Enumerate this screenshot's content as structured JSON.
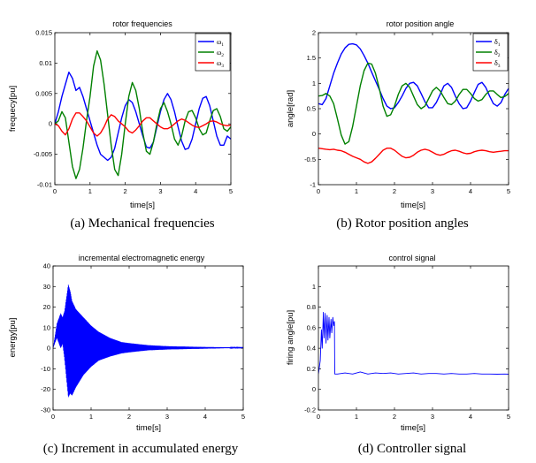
{
  "chart_data": [
    {
      "id": "a",
      "type": "line",
      "title": "rotor frequencies",
      "xlabel": "time[s]",
      "ylabel": "frequecy[pu]",
      "xlim": [
        0,
        5
      ],
      "ylim": [
        -0.01,
        0.015
      ],
      "xticks": [
        0,
        1,
        2,
        3,
        4,
        5
      ],
      "yticks": [
        -0.01,
        -0.005,
        0,
        0.005,
        0.01,
        0.015
      ],
      "ytick_labels": [
        "-0.01",
        "-0.005",
        "0",
        "0.005",
        "0.01",
        "0.015"
      ],
      "legend_position": "top-right",
      "caption": "(a) Mechanical frequencies",
      "series": [
        {
          "name": "ω",
          "sub": "1",
          "color": "#0000ff",
          "x": [
            0,
            0.1,
            0.2,
            0.3,
            0.4,
            0.5,
            0.6,
            0.7,
            0.8,
            0.9,
            1.0,
            1.1,
            1.2,
            1.3,
            1.4,
            1.5,
            1.6,
            1.7,
            1.8,
            1.9,
            2.0,
            2.1,
            2.2,
            2.3,
            2.4,
            2.5,
            2.6,
            2.7,
            2.8,
            2.9,
            3.0,
            3.1,
            3.2,
            3.3,
            3.4,
            3.5,
            3.6,
            3.7,
            3.8,
            3.9,
            4.0,
            4.1,
            4.2,
            4.3,
            4.4,
            4.5,
            4.6,
            4.7,
            4.8,
            4.9,
            5.0
          ],
          "y": [
            0,
            0.002,
            0.0045,
            0.0065,
            0.0085,
            0.0075,
            0.0055,
            0.006,
            0.0045,
            0.0025,
            0.0005,
            -0.0015,
            -0.0035,
            -0.005,
            -0.0055,
            -0.006,
            -0.0055,
            -0.004,
            -0.0015,
            0.001,
            0.003,
            0.004,
            0.0035,
            0.002,
            0,
            -0.002,
            -0.0038,
            -0.004,
            -0.003,
            -0.0005,
            0.002,
            0.004,
            0.005,
            0.004,
            0.002,
            -0.0005,
            -0.0028,
            -0.0042,
            -0.004,
            -0.0025,
            0,
            0.0025,
            0.0042,
            0.0045,
            0.003,
            0.0005,
            -0.002,
            -0.0035,
            -0.0035,
            -0.002,
            -0.0025
          ]
        },
        {
          "name": "ω",
          "sub": "2",
          "color": "#008000",
          "x": [
            0,
            0.1,
            0.2,
            0.3,
            0.4,
            0.5,
            0.6,
            0.7,
            0.8,
            0.9,
            1.0,
            1.1,
            1.2,
            1.3,
            1.4,
            1.5,
            1.6,
            1.7,
            1.8,
            1.9,
            2.0,
            2.1,
            2.2,
            2.3,
            2.4,
            2.5,
            2.6,
            2.7,
            2.8,
            2.9,
            3.0,
            3.1,
            3.2,
            3.3,
            3.4,
            3.5,
            3.6,
            3.7,
            3.8,
            3.9,
            4.0,
            4.1,
            4.2,
            4.3,
            4.4,
            4.5,
            4.6,
            4.7,
            4.8,
            4.9,
            5.0
          ],
          "y": [
            0,
            0.0005,
            0.002,
            0.001,
            -0.003,
            -0.007,
            -0.009,
            -0.0075,
            -0.004,
            0.0005,
            0.0045,
            0.0095,
            0.012,
            0.0105,
            0.0065,
            0.0015,
            -0.0035,
            -0.0075,
            -0.0085,
            -0.005,
            0,
            0.0045,
            0.0068,
            0.0055,
            0.0025,
            -0.0015,
            -0.0045,
            -0.005,
            -0.003,
            0,
            0.0025,
            0.0035,
            0.002,
            0,
            -0.0025,
            -0.0035,
            -0.002,
            0.0005,
            0.002,
            0.0022,
            0.001,
            -0.0008,
            -0.0018,
            -0.0015,
            0.0005,
            0.0022,
            0.0025,
            0.0012,
            -0.0008,
            -0.0012,
            -0.0005
          ]
        },
        {
          "name": "ω",
          "sub": "3",
          "color": "#ff0000",
          "x": [
            0,
            0.1,
            0.2,
            0.3,
            0.4,
            0.5,
            0.6,
            0.7,
            0.8,
            0.9,
            1.0,
            1.1,
            1.2,
            1.3,
            1.4,
            1.5,
            1.6,
            1.7,
            1.8,
            1.9,
            2.0,
            2.1,
            2.2,
            2.3,
            2.4,
            2.5,
            2.6,
            2.7,
            2.8,
            2.9,
            3.0,
            3.1,
            3.2,
            3.3,
            3.4,
            3.5,
            3.6,
            3.7,
            3.8,
            3.9,
            4.0,
            4.1,
            4.2,
            4.3,
            4.4,
            4.5,
            4.6,
            4.7,
            4.8,
            4.9,
            5.0
          ],
          "y": [
            0,
            -0.0003,
            -0.0012,
            -0.0018,
            -0.0008,
            0.0008,
            0.0018,
            0.0018,
            0.0012,
            0.0005,
            -0.0005,
            -0.0015,
            -0.002,
            -0.0015,
            -0.0005,
            0.0008,
            0.0015,
            0.0012,
            0.0005,
            0,
            -0.0005,
            -0.0012,
            -0.0015,
            -0.001,
            -0.0003,
            0.0005,
            0.001,
            0.001,
            0.0005,
            0,
            -0.0005,
            -0.0008,
            -0.0008,
            -0.0005,
            0,
            0.0005,
            0.0008,
            0.0006,
            0.0002,
            -0.0002,
            -0.0005,
            -0.0006,
            -0.0003,
            0,
            0.0004,
            0.0005,
            0.0003,
            0,
            -0.0002,
            -0.0003,
            -0.0002
          ]
        }
      ]
    },
    {
      "id": "b",
      "type": "line",
      "title": "rotor position angle",
      "xlabel": "time[s]",
      "ylabel": "angle[rad]",
      "xlim": [
        0,
        5
      ],
      "ylim": [
        -1,
        2
      ],
      "xticks": [
        0,
        1,
        2,
        3,
        4,
        5
      ],
      "yticks": [
        -1,
        -0.5,
        0,
        0.5,
        1,
        1.5,
        2
      ],
      "ytick_labels": [
        "-1",
        "-0.5",
        "0",
        "0.5",
        "1",
        "1.5",
        "2"
      ],
      "legend_position": "top-right",
      "caption": "(b) Rotor position angles",
      "series": [
        {
          "name": "δ",
          "sub": "1",
          "color": "#0000ff",
          "x": [
            0,
            0.1,
            0.2,
            0.3,
            0.4,
            0.5,
            0.6,
            0.7,
            0.8,
            0.9,
            1.0,
            1.1,
            1.2,
            1.3,
            1.4,
            1.5,
            1.6,
            1.7,
            1.8,
            1.9,
            2.0,
            2.1,
            2.2,
            2.3,
            2.4,
            2.5,
            2.6,
            2.7,
            2.8,
            2.9,
            3.0,
            3.1,
            3.2,
            3.3,
            3.4,
            3.5,
            3.6,
            3.7,
            3.8,
            3.9,
            4.0,
            4.1,
            4.2,
            4.3,
            4.4,
            4.5,
            4.6,
            4.7,
            4.8,
            4.9,
            5.0
          ],
          "y": [
            0.6,
            0.58,
            0.7,
            0.95,
            1.2,
            1.4,
            1.58,
            1.7,
            1.77,
            1.78,
            1.76,
            1.68,
            1.55,
            1.4,
            1.22,
            1.05,
            0.88,
            0.7,
            0.55,
            0.5,
            0.52,
            0.62,
            0.75,
            0.9,
            1.0,
            1.02,
            0.95,
            0.8,
            0.64,
            0.52,
            0.52,
            0.62,
            0.78,
            0.95,
            1.0,
            0.92,
            0.75,
            0.6,
            0.5,
            0.52,
            0.65,
            0.82,
            0.98,
            1.02,
            0.92,
            0.75,
            0.6,
            0.55,
            0.62,
            0.78,
            0.9
          ]
        },
        {
          "name": "δ",
          "sub": "2",
          "color": "#008000",
          "x": [
            0,
            0.1,
            0.2,
            0.3,
            0.4,
            0.5,
            0.6,
            0.7,
            0.8,
            0.9,
            1.0,
            1.1,
            1.2,
            1.3,
            1.4,
            1.5,
            1.6,
            1.7,
            1.8,
            1.9,
            2.0,
            2.1,
            2.2,
            2.3,
            2.4,
            2.5,
            2.6,
            2.7,
            2.8,
            2.9,
            3.0,
            3.1,
            3.2,
            3.3,
            3.4,
            3.5,
            3.6,
            3.7,
            3.8,
            3.9,
            4.0,
            4.1,
            4.2,
            4.3,
            4.4,
            4.5,
            4.6,
            4.7,
            4.8,
            4.9,
            5.0
          ],
          "y": [
            0.75,
            0.76,
            0.8,
            0.75,
            0.6,
            0.3,
            -0.02,
            -0.2,
            -0.15,
            0.15,
            0.55,
            0.95,
            1.25,
            1.4,
            1.38,
            1.2,
            0.9,
            0.55,
            0.35,
            0.38,
            0.55,
            0.78,
            0.95,
            1.0,
            0.92,
            0.75,
            0.58,
            0.5,
            0.55,
            0.7,
            0.85,
            0.92,
            0.85,
            0.72,
            0.6,
            0.58,
            0.65,
            0.78,
            0.88,
            0.88,
            0.8,
            0.7,
            0.65,
            0.68,
            0.78,
            0.85,
            0.85,
            0.78,
            0.72,
            0.74,
            0.8
          ]
        },
        {
          "name": "δ",
          "sub": "3",
          "color": "#ff0000",
          "x": [
            0,
            0.1,
            0.2,
            0.3,
            0.4,
            0.5,
            0.6,
            0.7,
            0.8,
            0.9,
            1.0,
            1.1,
            1.2,
            1.3,
            1.4,
            1.5,
            1.6,
            1.7,
            1.8,
            1.9,
            2.0,
            2.1,
            2.2,
            2.3,
            2.4,
            2.5,
            2.6,
            2.7,
            2.8,
            2.9,
            3.0,
            3.1,
            3.2,
            3.3,
            3.4,
            3.5,
            3.6,
            3.7,
            3.8,
            3.9,
            4.0,
            4.1,
            4.2,
            4.3,
            4.4,
            4.5,
            4.6,
            4.7,
            4.8,
            4.9,
            5.0
          ],
          "y": [
            -0.28,
            -0.29,
            -0.3,
            -0.31,
            -0.3,
            -0.32,
            -0.33,
            -0.36,
            -0.4,
            -0.44,
            -0.47,
            -0.5,
            -0.55,
            -0.58,
            -0.55,
            -0.48,
            -0.4,
            -0.32,
            -0.28,
            -0.28,
            -0.32,
            -0.38,
            -0.44,
            -0.47,
            -0.46,
            -0.42,
            -0.36,
            -0.32,
            -0.3,
            -0.32,
            -0.36,
            -0.4,
            -0.42,
            -0.4,
            -0.36,
            -0.33,
            -0.32,
            -0.34,
            -0.37,
            -0.39,
            -0.38,
            -0.35,
            -0.33,
            -0.32,
            -0.33,
            -0.35,
            -0.36,
            -0.35,
            -0.34,
            -0.33,
            -0.33
          ]
        }
      ]
    },
    {
      "id": "c",
      "type": "line",
      "title": "incremental electromagnetic energy",
      "xlabel": "time[s]",
      "ylabel": "energy[pu]",
      "xlim": [
        0,
        5
      ],
      "ylim": [
        -30,
        40
      ],
      "xticks": [
        0,
        1,
        2,
        3,
        4,
        5
      ],
      "yticks": [
        -30,
        -20,
        -10,
        0,
        10,
        20,
        30,
        40
      ],
      "ytick_labels": [
        "-30",
        "-20",
        "-10",
        "0",
        "10",
        "20",
        "30",
        "40"
      ],
      "caption": "(c) Increment in accumulated energy",
      "series": [
        {
          "name": "energy",
          "color": "#0000ff",
          "x": [
            0,
            0.1,
            0.2,
            0.25,
            0.3,
            0.4,
            0.45,
            0.5,
            0.6,
            0.8,
            1.0,
            1.2,
            1.5,
            1.8,
            2.0,
            2.5,
            3.0,
            3.5,
            4.0,
            4.5,
            5.0
          ],
          "upper": [
            0,
            12,
            17,
            15,
            18,
            31,
            28,
            23,
            19,
            15,
            11,
            8,
            5,
            3,
            2.5,
            1.5,
            1,
            0.8,
            0.6,
            0.5,
            0.4
          ],
          "lower": [
            0,
            5,
            0,
            2,
            -5,
            -24,
            -22,
            -23,
            -19,
            -13,
            -9,
            -6,
            -4,
            -2.5,
            -2,
            -1,
            -0.6,
            -0.4,
            -0.2,
            0,
            0.2
          ]
        }
      ]
    },
    {
      "id": "d",
      "type": "line",
      "title": "control signal",
      "xlabel": "time[s]",
      "ylabel": "firing angle[pu]",
      "xlim": [
        0,
        5
      ],
      "ylim": [
        -0.2,
        1.2
      ],
      "xticks": [
        0,
        1,
        2,
        3,
        4,
        5
      ],
      "yticks": [
        -0.2,
        0,
        0.2,
        0.4,
        0.6,
        0.8,
        1
      ],
      "ytick_labels": [
        "-0.2",
        "0",
        "0.2",
        "0.4",
        "0.6",
        "0.8",
        "1"
      ],
      "caption": "(d) Controller signal",
      "series": [
        {
          "name": "control",
          "color": "#0000ff",
          "x": [
            0,
            0.05,
            0.08,
            0.1,
            0.13,
            0.15,
            0.18,
            0.2,
            0.23,
            0.25,
            0.28,
            0.3,
            0.33,
            0.35,
            0.38,
            0.4,
            0.42,
            0.43,
            0.5,
            0.7,
            0.9,
            1.1,
            1.3,
            1.5,
            1.7,
            1.9,
            2.1,
            2.3,
            2.5,
            2.7,
            2.9,
            3.1,
            3.3,
            3.5,
            3.7,
            3.9,
            4.1,
            4.3,
            4.5,
            4.7,
            4.9,
            5.0
          ],
          "y": [
            0.15,
            0.28,
            0.58,
            0.4,
            0.75,
            0.5,
            0.74,
            0.45,
            0.72,
            0.48,
            0.7,
            0.5,
            0.68,
            0.55,
            0.7,
            0.62,
            0.66,
            0.15,
            0.15,
            0.16,
            0.15,
            0.17,
            0.15,
            0.16,
            0.155,
            0.16,
            0.15,
            0.155,
            0.16,
            0.15,
            0.155,
            0.155,
            0.15,
            0.155,
            0.15,
            0.15,
            0.155,
            0.15,
            0.15,
            0.148,
            0.15,
            0.148
          ]
        }
      ]
    }
  ]
}
